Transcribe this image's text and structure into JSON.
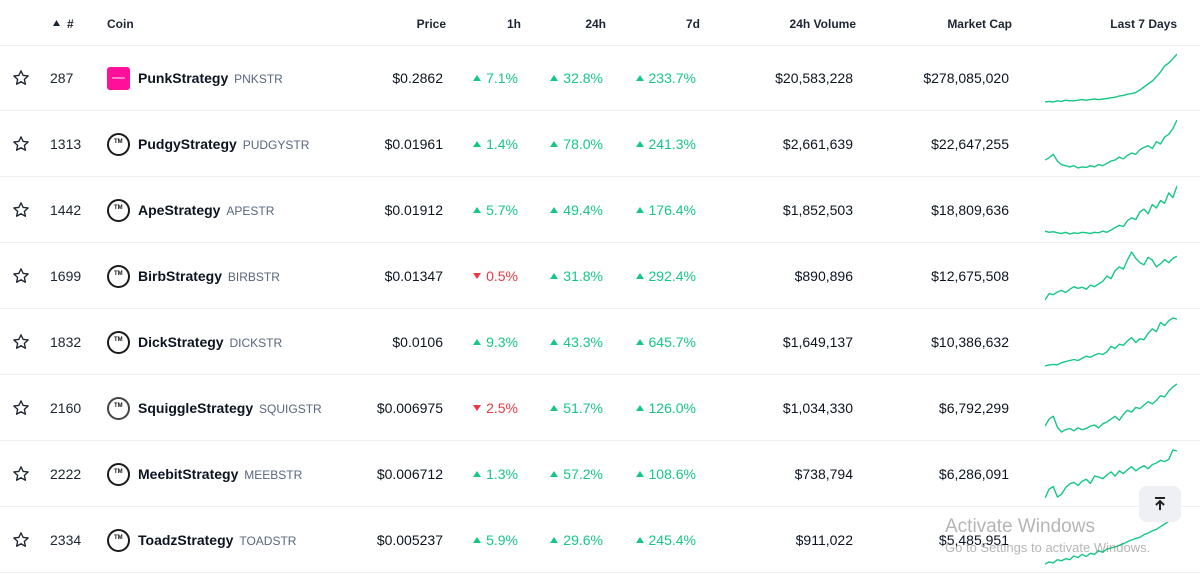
{
  "header": {
    "rank": "#",
    "coin": "Coin",
    "price": "Price",
    "h1": "1h",
    "h24": "24h",
    "d7": "7d",
    "volume": "24h Volume",
    "mcap": "Market Cap",
    "spark": "Last 7 Days"
  },
  "colors": {
    "up": "#16c784",
    "down": "#ea3943",
    "spark": "#16c784",
    "pink_logo": "#ff0f9a"
  },
  "rows": [
    {
      "rank": "287",
      "name": "PunkStrategy",
      "symbol": "PNKSTR",
      "price": "$0.2862",
      "h1": "7.1%",
      "h1_dir": "up",
      "h24": "32.8%",
      "h24_dir": "up",
      "d7": "233.7%",
      "d7_dir": "up",
      "volume": "$20,583,228",
      "mcap": "$278,085,020",
      "logo_icon": "punk-logo-icon",
      "spark": [
        20,
        21,
        20,
        22,
        21,
        23,
        22,
        22,
        23,
        24,
        23,
        24,
        25,
        24,
        25,
        26,
        27,
        28,
        30,
        31,
        33,
        34,
        36,
        40,
        45,
        50,
        55,
        62,
        70,
        80,
        85,
        92,
        100
      ]
    },
    {
      "rank": "1313",
      "name": "PudgyStrategy",
      "symbol": "PUDGYSTR",
      "price": "$0.01961",
      "h1": "1.4%",
      "h1_dir": "up",
      "h24": "78.0%",
      "h24_dir": "up",
      "d7": "241.3%",
      "d7_dir": "up",
      "volume": "$2,661,639",
      "mcap": "$22,647,255",
      "logo_icon": "tm-logo-icon",
      "spark": [
        30,
        34,
        40,
        28,
        22,
        20,
        18,
        20,
        16,
        18,
        17,
        20,
        18,
        22,
        20,
        24,
        28,
        30,
        35,
        32,
        38,
        42,
        40,
        48,
        52,
        55,
        50,
        62,
        58,
        70,
        75,
        85,
        100
      ]
    },
    {
      "rank": "1442",
      "name": "ApeStrategy",
      "symbol": "APESTR",
      "price": "$0.01912",
      "h1": "5.7%",
      "h1_dir": "up",
      "h24": "49.4%",
      "h24_dir": "up",
      "d7": "176.4%",
      "d7_dir": "up",
      "volume": "$1,852,503",
      "mcap": "$18,809,636",
      "logo_icon": "tm-logo-icon",
      "spark": [
        22,
        20,
        21,
        19,
        18,
        20,
        17,
        19,
        18,
        20,
        19,
        18,
        20,
        19,
        22,
        20,
        24,
        28,
        32,
        30,
        40,
        45,
        42,
        55,
        60,
        52,
        68,
        62,
        75,
        70,
        88,
        80,
        100
      ]
    },
    {
      "rank": "1699",
      "name": "BirbStrategy",
      "symbol": "BIRBSTR",
      "price": "$0.01347",
      "h1": "0.5%",
      "h1_dir": "down",
      "h24": "31.8%",
      "h24_dir": "up",
      "d7": "292.4%",
      "d7_dir": "up",
      "volume": "$890,896",
      "mcap": "$12,675,508",
      "logo_icon": "tm-logo-icon",
      "spark": [
        10,
        22,
        20,
        25,
        28,
        24,
        30,
        35,
        32,
        34,
        30,
        38,
        35,
        40,
        45,
        55,
        50,
        65,
        72,
        68,
        85,
        100,
        88,
        80,
        76,
        90,
        85,
        72,
        78,
        86,
        80,
        88,
        92
      ]
    },
    {
      "rank": "1832",
      "name": "DickStrategy",
      "symbol": "DICKSTR",
      "price": "$0.0106",
      "h1": "9.3%",
      "h1_dir": "up",
      "h24": "43.3%",
      "h24_dir": "up",
      "d7": "645.7%",
      "d7_dir": "up",
      "volume": "$1,649,137",
      "mcap": "$10,386,632",
      "logo_icon": "tm-logo-icon",
      "spark": [
        12,
        14,
        15,
        14,
        18,
        20,
        22,
        24,
        22,
        26,
        30,
        28,
        32,
        35,
        33,
        38,
        48,
        44,
        52,
        50,
        58,
        64,
        55,
        62,
        60,
        72,
        80,
        75,
        92,
        86,
        95,
        100,
        98
      ]
    },
    {
      "rank": "2160",
      "name": "SquiggleStrategy",
      "symbol": "SQUIGSTR",
      "price": "$0.006975",
      "h1": "2.5%",
      "h1_dir": "down",
      "h24": "51.7%",
      "h24_dir": "up",
      "d7": "126.0%",
      "d7_dir": "up",
      "volume": "$1,034,330",
      "mcap": "$6,792,299",
      "logo_icon": "squiggle-logo-icon",
      "spark": [
        28,
        40,
        45,
        26,
        18,
        22,
        24,
        20,
        25,
        22,
        24,
        28,
        30,
        25,
        32,
        35,
        40,
        45,
        38,
        48,
        55,
        52,
        60,
        58,
        64,
        70,
        66,
        72,
        80,
        78,
        88,
        95,
        100
      ]
    },
    {
      "rank": "2222",
      "name": "MeebitStrategy",
      "symbol": "MEEBSTR",
      "price": "$0.006712",
      "h1": "1.3%",
      "h1_dir": "up",
      "h24": "57.2%",
      "h24_dir": "up",
      "d7": "108.6%",
      "d7_dir": "up",
      "volume": "$738,794",
      "mcap": "$6,286,091",
      "logo_icon": "tm-logo-icon",
      "spark": [
        8,
        25,
        30,
        10,
        15,
        28,
        35,
        38,
        32,
        40,
        44,
        36,
        50,
        48,
        45,
        52,
        58,
        50,
        60,
        55,
        62,
        68,
        60,
        66,
        70,
        64,
        72,
        75,
        80,
        78,
        82,
        100,
        98
      ]
    },
    {
      "rank": "2334",
      "name": "ToadzStrategy",
      "symbol": "TOADSTR",
      "price": "$0.005237",
      "h1": "5.9%",
      "h1_dir": "up",
      "h24": "29.6%",
      "h24_dir": "up",
      "d7": "245.4%",
      "d7_dir": "up",
      "volume": "$911,022",
      "mcap": "$5,485,951",
      "logo_icon": "tm-logo-icon",
      "spark": [
        10,
        14,
        12,
        18,
        16,
        20,
        18,
        25,
        22,
        28,
        24,
        30,
        28,
        35,
        32,
        38,
        40,
        42,
        45,
        48,
        52,
        55,
        58,
        60,
        65,
        68,
        72,
        75,
        80,
        85,
        90,
        95,
        100
      ]
    }
  ],
  "watermark": {
    "line1": "Activate Windows",
    "line2": "Go to Settings to activate Windows."
  },
  "icons": {
    "star": "star-outline-icon",
    "sort": "sort-up-icon",
    "scroll": "scroll-to-top-icon"
  }
}
